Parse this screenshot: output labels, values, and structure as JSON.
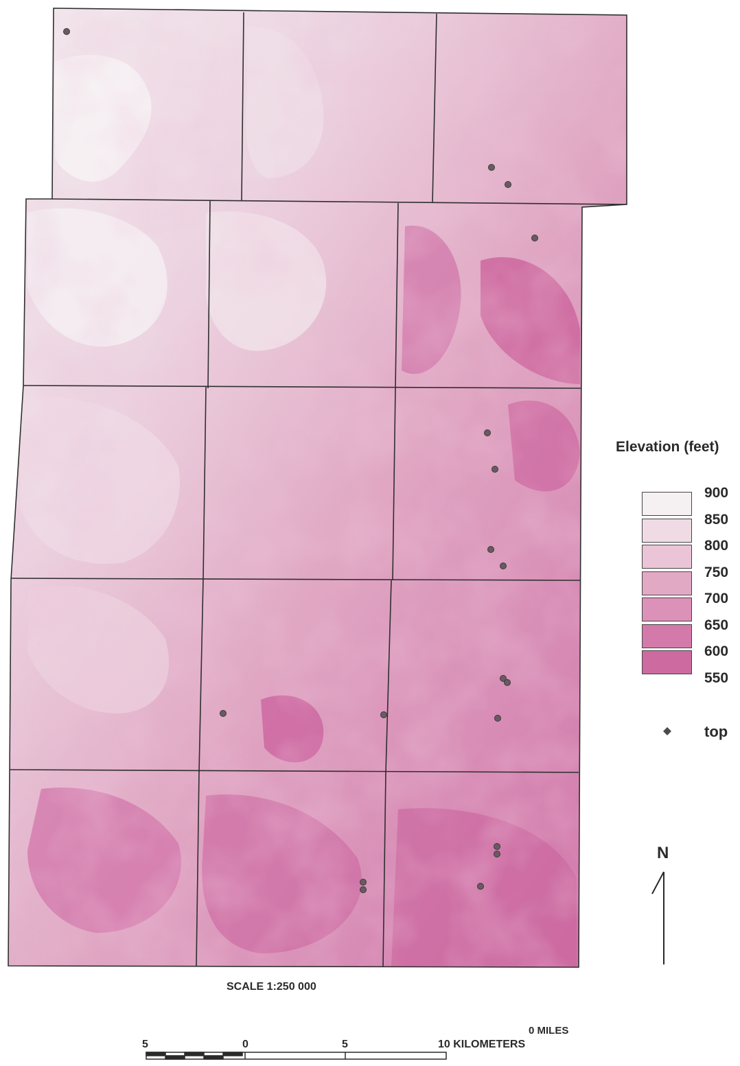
{
  "legend": {
    "title": "Elevation (feet)",
    "classes": [
      {
        "label": "900",
        "color": "#f5f1f3"
      },
      {
        "label": "850",
        "color": "#f0dbe5"
      },
      {
        "label": "800",
        "color": "#ebc4d7"
      },
      {
        "label": "750",
        "color": "#e2a9c5"
      },
      {
        "label": "700",
        "color": "#dc91b8"
      },
      {
        "label": "650",
        "color": "#d47aab"
      },
      {
        "label": "600",
        "color": "#cd6aa0"
      }
    ],
    "bottom_label": "550",
    "marker": {
      "label": "top",
      "icon": "diamond-dot"
    }
  },
  "north_arrow": {
    "label": "N"
  },
  "scale": {
    "title": "SCALE 1:250 000",
    "miles_label": "0 MILES",
    "km_ticks": [
      "5",
      "0",
      "5",
      "10 KILOMETERS"
    ]
  },
  "quadrangles": {
    "rows": 5,
    "cols": 3
  }
}
